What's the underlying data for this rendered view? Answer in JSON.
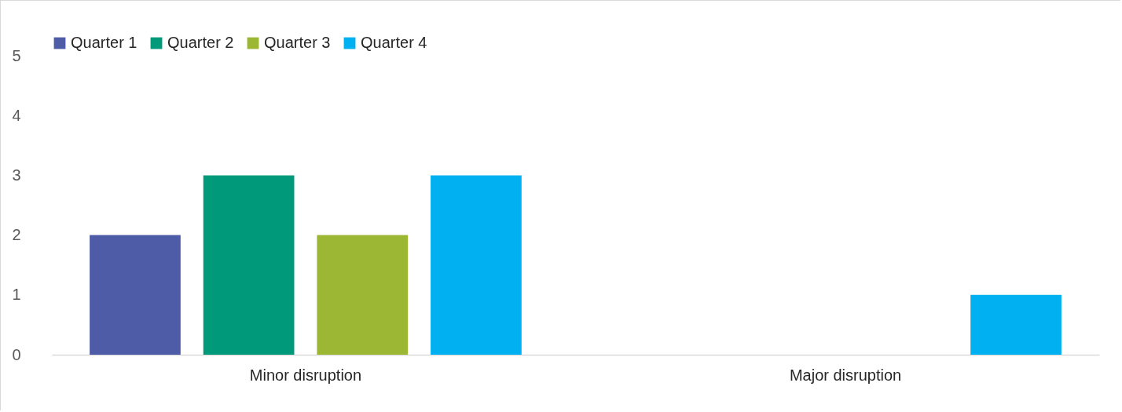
{
  "chart_data": {
    "type": "bar",
    "categories": [
      "Minor disruption",
      "Major disruption"
    ],
    "series": [
      {
        "name": "Quarter 1",
        "color": "#4e5ba6",
        "values": [
          2,
          0
        ]
      },
      {
        "name": "Quarter 2",
        "color": "#00997a",
        "values": [
          3,
          0
        ]
      },
      {
        "name": "Quarter 3",
        "color": "#9bb733",
        "values": [
          2,
          0
        ]
      },
      {
        "name": "Quarter 4",
        "color": "#00b0f0",
        "values": [
          3,
          1
        ]
      }
    ],
    "ylim": [
      0,
      5
    ],
    "yticks": [
      0,
      1,
      2,
      3,
      4,
      5
    ],
    "legend": "top"
  }
}
